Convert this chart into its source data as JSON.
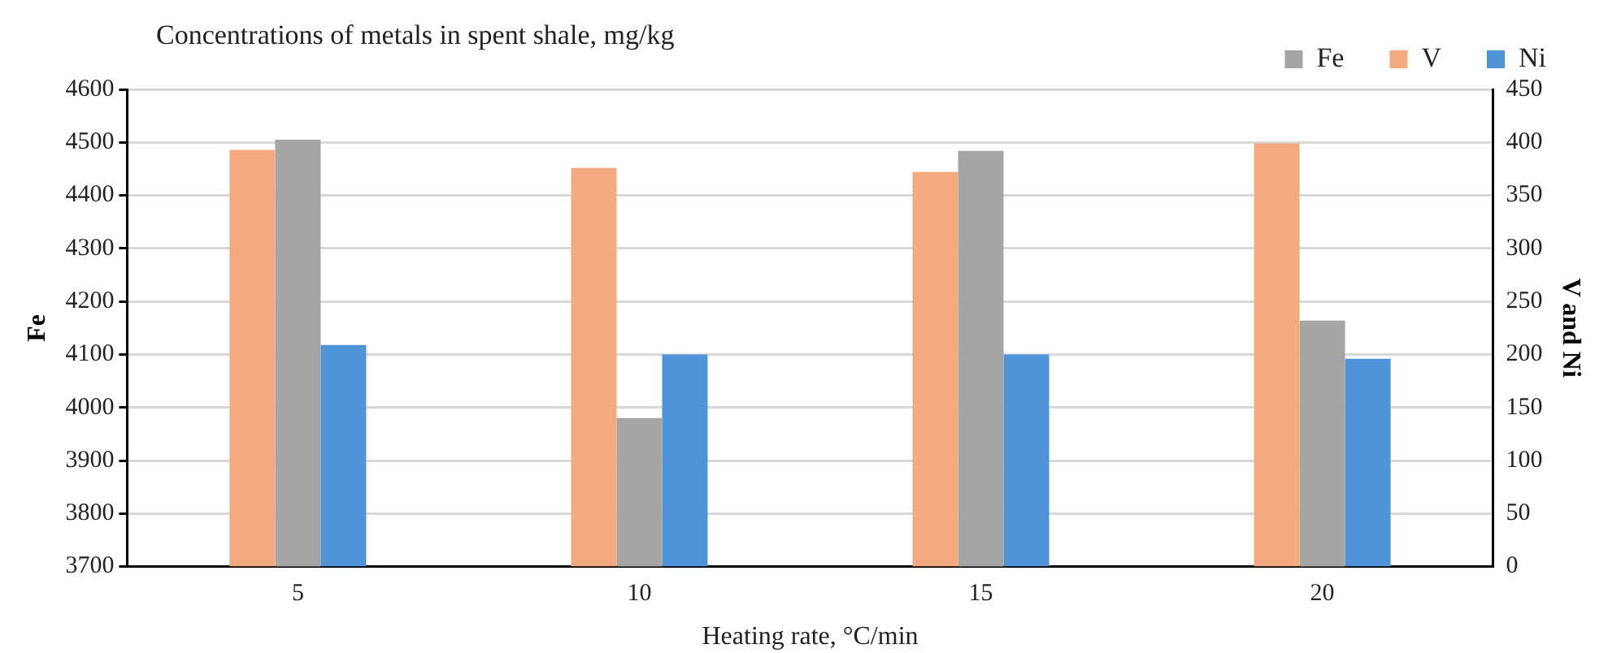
{
  "chart_data": {
    "type": "bar",
    "title": "Concentrations of metals in spent shale, mg/kg",
    "xlabel": "Heating rate, °C/min",
    "ylabel": "Fe",
    "y2label": "V and Ni",
    "categories": [
      "5",
      "10",
      "15",
      "20"
    ],
    "series": [
      {
        "name": "V",
        "color": "#f4a97e",
        "axis": "y2",
        "values": [
          393,
          376,
          372,
          399
        ]
      },
      {
        "name": "Fe",
        "color": "#a5a5a5",
        "axis": "y",
        "values": [
          4505,
          3980,
          4484,
          4164
        ]
      },
      {
        "name": "Ni",
        "color": "#4f94d8",
        "axis": "y2",
        "values": [
          209,
          200,
          200,
          196
        ]
      }
    ],
    "ylim": [
      3700,
      4600
    ],
    "yticks": [
      3700,
      3800,
      3900,
      4000,
      4100,
      4200,
      4300,
      4400,
      4500,
      4600
    ],
    "y2lim": [
      0,
      450
    ],
    "y2ticks": [
      0,
      50,
      100,
      150,
      200,
      250,
      300,
      350,
      400,
      450
    ],
    "grid": "y",
    "legend": "top right"
  }
}
